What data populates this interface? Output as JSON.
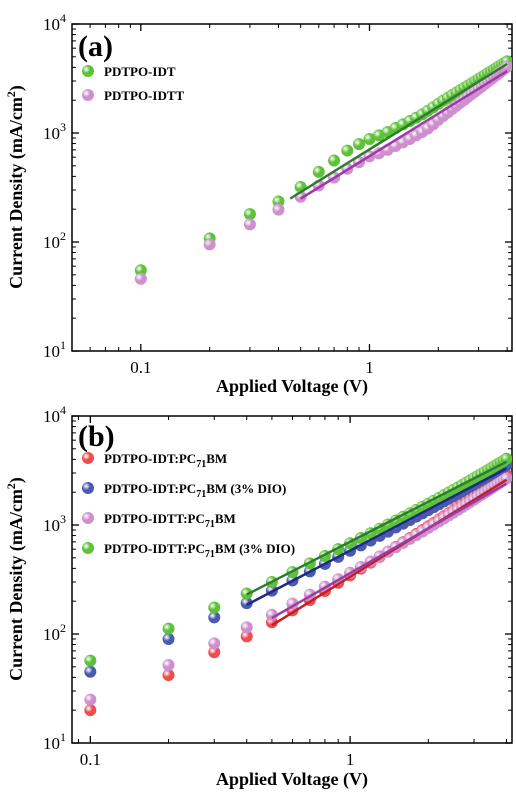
{
  "chart_data": [
    {
      "type": "scatter",
      "panel_label": "(a)",
      "xlabel": "Applied Voltage (V)",
      "ylabel_main": "Current Density (mA/cm",
      "ylabel_sup": "2",
      "ylabel_end": ")",
      "xscale": "log",
      "yscale": "log",
      "xlim": [
        0.05,
        4.2
      ],
      "ylim": [
        10,
        10000
      ],
      "x_ticks": [
        {
          "v": 0.1,
          "label": "0.1"
        },
        {
          "v": 1,
          "label": "1"
        }
      ],
      "y_ticks": [
        {
          "v": 10,
          "base": "10",
          "exp": "1"
        },
        {
          "v": 100,
          "base": "10",
          "exp": "2"
        },
        {
          "v": 1000,
          "base": "10",
          "exp": "3"
        },
        {
          "v": 10000,
          "base": "10",
          "exp": "4"
        }
      ],
      "legend_position": "top-left",
      "series": [
        {
          "name": "PDTPO-IDT",
          "color": "#5cc238",
          "x": [
            0.1,
            0.2,
            0.3,
            0.4,
            0.5,
            0.6,
            0.7,
            0.8,
            0.9,
            1.0,
            1.1,
            1.2,
            1.3,
            1.4,
            1.5,
            1.6,
            1.7,
            1.8,
            1.9,
            2.0,
            2.1,
            2.2,
            2.3,
            2.4,
            2.5,
            2.6,
            2.7,
            2.8,
            2.9,
            3.0,
            3.1,
            3.2,
            3.3,
            3.4,
            3.5,
            3.6,
            3.7,
            3.8,
            3.9,
            4.0
          ],
          "y": [
            55,
            108,
            180,
            235,
            320,
            440,
            560,
            690,
            790,
            880,
            950,
            1020,
            1110,
            1200,
            1290,
            1380,
            1480,
            1600,
            1720,
            1850,
            1980,
            2100,
            2230,
            2350,
            2480,
            2600,
            2730,
            2860,
            2990,
            3130,
            3260,
            3400,
            3540,
            3680,
            3820,
            3970,
            4110,
            4250,
            4400,
            4550
          ],
          "fit": {
            "x": [
              0.45,
              4.0
            ],
            "y": [
              250,
              4300
            ],
            "color": "#2e7d2e"
          }
        },
        {
          "name": "PDTPO-IDTT",
          "color": "#cf8fcf",
          "x": [
            0.1,
            0.2,
            0.3,
            0.4,
            0.5,
            0.6,
            0.7,
            0.8,
            0.9,
            1.0,
            1.1,
            1.2,
            1.3,
            1.4,
            1.5,
            1.6,
            1.7,
            1.8,
            1.9,
            2.0,
            2.1,
            2.2,
            2.3,
            2.4,
            2.5,
            2.6,
            2.7,
            2.8,
            2.9,
            3.0,
            3.1,
            3.2,
            3.3,
            3.4,
            3.5,
            3.6,
            3.7,
            3.8,
            3.9,
            4.0
          ],
          "y": [
            46,
            95,
            145,
            198,
            260,
            330,
            390,
            470,
            540,
            610,
            650,
            700,
            760,
            820,
            880,
            950,
            1020,
            1100,
            1200,
            1320,
            1430,
            1540,
            1660,
            1780,
            1900,
            2020,
            2150,
            2280,
            2410,
            2540,
            2680,
            2820,
            2960,
            3110,
            3260,
            3410,
            3560,
            3720,
            3880,
            4050
          ],
          "fit": {
            "x": [
              0.5,
              4.0
            ],
            "y": [
              250,
              3700
            ],
            "color": "#9b3ca6"
          }
        }
      ]
    },
    {
      "type": "scatter",
      "panel_label": "(b)",
      "xlabel": "Applied Voltage (V)",
      "ylabel_main": "Current Density (mA/cm",
      "ylabel_sup": "2",
      "ylabel_end": ")",
      "xscale": "log",
      "yscale": "log",
      "xlim": [
        0.085,
        4.2
      ],
      "ylim": [
        10,
        10000
      ],
      "x_ticks": [
        {
          "v": 0.1,
          "label": "0.1"
        },
        {
          "v": 1,
          "label": "1"
        }
      ],
      "y_ticks": [
        {
          "v": 10,
          "base": "10",
          "exp": "1"
        },
        {
          "v": 100,
          "base": "10",
          "exp": "2"
        },
        {
          "v": 1000,
          "base": "10",
          "exp": "3"
        },
        {
          "v": 10000,
          "base": "10",
          "exp": "4"
        }
      ],
      "legend_position": "top-left",
      "series": [
        {
          "name_main": "PDTPO-IDT:PC",
          "name_sub": "71",
          "name_end": "BM",
          "color": "#ee4d4d",
          "x": [
            0.1,
            0.2,
            0.3,
            0.4,
            0.5,
            0.6,
            0.7,
            0.8,
            0.9,
            1.0,
            1.1,
            1.2,
            1.3,
            1.4,
            1.5,
            1.6,
            1.7,
            1.8,
            1.9,
            2.0,
            2.1,
            2.2,
            2.3,
            2.4,
            2.5,
            2.6,
            2.7,
            2.8,
            2.9,
            3.0,
            3.1,
            3.2,
            3.3,
            3.4,
            3.5,
            3.6,
            3.7,
            3.8,
            3.9,
            4.0
          ],
          "y": [
            20,
            42,
            68,
            95,
            128,
            165,
            205,
            248,
            295,
            345,
            398,
            452,
            510,
            570,
            630,
            695,
            760,
            830,
            900,
            975,
            1050,
            1125,
            1205,
            1285,
            1370,
            1455,
            1545,
            1635,
            1725,
            1820,
            1915,
            2015,
            2115,
            2215,
            2320,
            2425,
            2535,
            2645,
            2755,
            2870
          ],
          "fit": {
            "x": [
              0.5,
              4.0
            ],
            "y": [
              120,
              2600
            ],
            "color": "#c02020"
          }
        },
        {
          "name_main": "PDTPO-IDT:PC",
          "name_sub": "71",
          "name_end": "BM (3% DIO)",
          "color": "#4a5ab0",
          "x": [
            0.1,
            0.2,
            0.3,
            0.4,
            0.5,
            0.6,
            0.7,
            0.8,
            0.9,
            1.0,
            1.1,
            1.2,
            1.3,
            1.4,
            1.5,
            1.6,
            1.7,
            1.8,
            1.9,
            2.0,
            2.1,
            2.2,
            2.3,
            2.4,
            2.5,
            2.6,
            2.7,
            2.8,
            2.9,
            3.0,
            3.1,
            3.2,
            3.3,
            3.4,
            3.5,
            3.6,
            3.7,
            3.8,
            3.9,
            4.0
          ],
          "y": [
            45,
            90,
            142,
            192,
            250,
            310,
            375,
            440,
            510,
            580,
            650,
            720,
            795,
            870,
            950,
            1030,
            1110,
            1195,
            1280,
            1370,
            1460,
            1550,
            1645,
            1740,
            1840,
            1940,
            2040,
            2145,
            2250,
            2360,
            2470,
            2580,
            2695,
            2810,
            2930,
            3050,
            3170,
            3290,
            3415,
            3540
          ],
          "fit": {
            "x": [
              0.4,
              4.0
            ],
            "y": [
              185,
              3300
            ],
            "color": "#1f2a80"
          }
        },
        {
          "name_main": "PDTPO-IDTT:PC",
          "name_sub": "71",
          "name_end": "BM",
          "color": "#cf8fcf",
          "x": [
            0.1,
            0.2,
            0.3,
            0.4,
            0.5,
            0.6,
            0.7,
            0.8,
            0.9,
            1.0,
            1.1,
            1.2,
            1.3,
            1.4,
            1.5,
            1.6,
            1.7,
            1.8,
            1.9,
            2.0,
            2.1,
            2.2,
            2.3,
            2.4,
            2.5,
            2.6,
            2.7,
            2.8,
            2.9,
            3.0,
            3.1,
            3.2,
            3.3,
            3.4,
            3.5,
            3.6,
            3.7,
            3.8,
            3.9,
            4.0
          ],
          "y": [
            25,
            52,
            82,
            115,
            150,
            190,
            230,
            272,
            318,
            365,
            412,
            462,
            515,
            570,
            625,
            685,
            745,
            808,
            872,
            940,
            1008,
            1080,
            1150,
            1225,
            1300,
            1380,
            1460,
            1540,
            1625,
            1710,
            1800,
            1890,
            1980,
            2075,
            2170,
            2270,
            2370,
            2470,
            2575,
            2680
          ],
          "fit": {
            "x": [
              0.5,
              4.0
            ],
            "y": [
              140,
              2400
            ],
            "color": "#9b3ca6"
          }
        },
        {
          "name_main": "PDTPO-IDTT:PC",
          "name_sub": "71",
          "name_end": "BM (3% DIO)",
          "color": "#5cc238",
          "x": [
            0.1,
            0.2,
            0.3,
            0.4,
            0.5,
            0.6,
            0.7,
            0.8,
            0.9,
            1.0,
            1.1,
            1.2,
            1.3,
            1.4,
            1.5,
            1.6,
            1.7,
            1.8,
            1.9,
            2.0,
            2.1,
            2.2,
            2.3,
            2.4,
            2.5,
            2.6,
            2.7,
            2.8,
            2.9,
            3.0,
            3.1,
            3.2,
            3.3,
            3.4,
            3.5,
            3.6,
            3.7,
            3.8,
            3.9,
            4.0
          ],
          "y": [
            57,
            112,
            175,
            235,
            300,
            370,
            445,
            520,
            600,
            680,
            760,
            840,
            925,
            1010,
            1100,
            1190,
            1280,
            1375,
            1470,
            1570,
            1670,
            1775,
            1880,
            1990,
            2100,
            2215,
            2330,
            2450,
            2570,
            2690,
            2815,
            2945,
            3075,
            3205,
            3340,
            3475,
            3615,
            3755,
            3900,
            4050
          ],
          "fit": {
            "x": [
              0.4,
              4.0
            ],
            "y": [
              230,
              3800
            ],
            "color": "#2e7d2e"
          }
        }
      ]
    }
  ]
}
